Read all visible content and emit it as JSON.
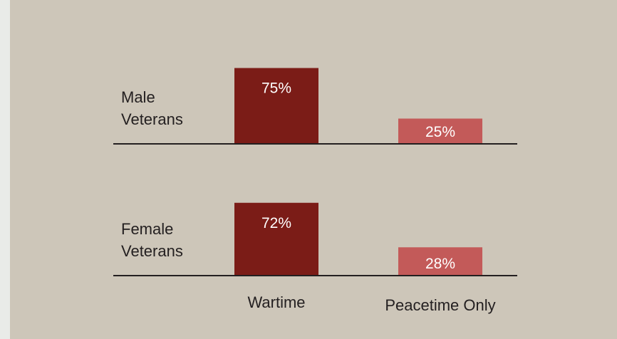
{
  "chart_data": {
    "type": "bar",
    "orientation": "vertical",
    "layout": "small-multiples",
    "categories": [
      "Wartime",
      "Peacetime Only"
    ],
    "value_format": "percent",
    "ylim": [
      0,
      100
    ],
    "grid": false,
    "legend": "none",
    "groups": [
      {
        "label_lines": [
          "Male",
          "Veterans"
        ],
        "values": [
          75,
          25
        ]
      },
      {
        "label_lines": [
          "Female",
          "Veterans"
        ],
        "values": [
          72,
          28
        ]
      }
    ],
    "colors": {
      "Wartime": "#7b1c17",
      "Peacetime Only": "#c35a59"
    }
  }
}
